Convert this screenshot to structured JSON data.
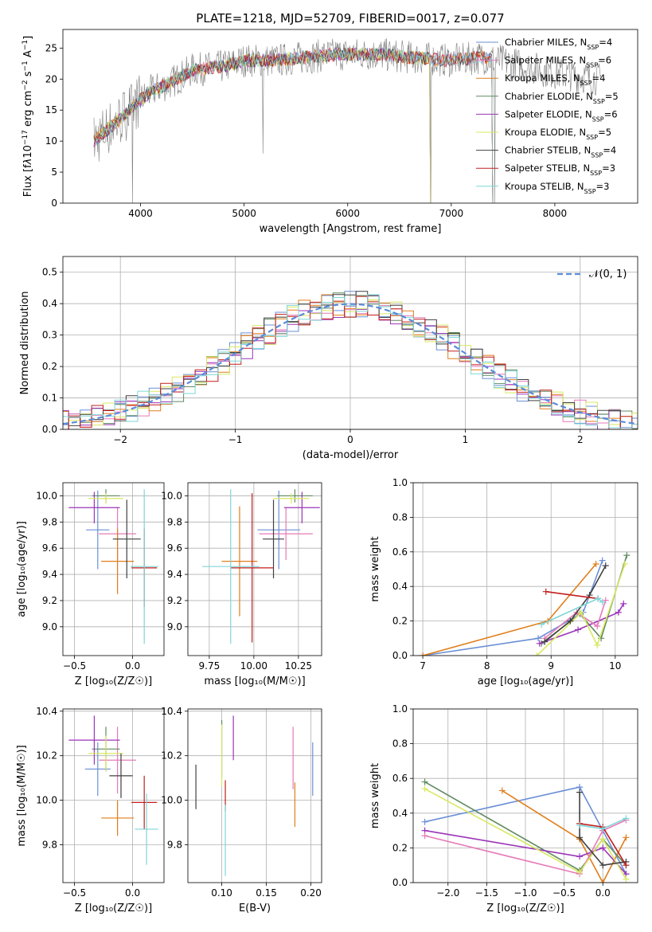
{
  "chart_data": [
    {
      "type": "line",
      "title": "PLATE=1218, MJD=52709, FIBERID=0017, z=0.077",
      "xlabel": "wavelength [Angstrom, rest frame]",
      "ylabel_html": "Flux [f<tspan font-style=\"italic\">λ</tspan>10<tspan baseline-shift=\"super\" font-size=\"9\">−17</tspan> erg cm<tspan baseline-shift=\"super\" font-size=\"9\">−2</tspan> s<tspan baseline-shift=\"super\" font-size=\"9\">−1</tspan> A<tspan baseline-shift=\"super\" font-size=\"9\">−1</tspan>]",
      "xlim": [
        3250,
        8800
      ],
      "ylim": [
        0,
        28
      ],
      "xticks": [
        4000,
        5000,
        6000,
        7000,
        8000
      ],
      "yticks": [
        0,
        5,
        10,
        15,
        20,
        25
      ],
      "grid": false,
      "legend_loc": "upper right",
      "data_series": {
        "name": "data",
        "color": "#808080",
        "x_range": [
          3550,
          8450
        ]
      },
      "continuum_nodes": [
        [
          3550,
          10
        ],
        [
          3650,
          11.5
        ],
        [
          3800,
          13.5
        ],
        [
          3950,
          16
        ],
        [
          4100,
          18
        ],
        [
          4300,
          19.5
        ],
        [
          4500,
          21.5
        ],
        [
          4800,
          22
        ],
        [
          5000,
          23
        ],
        [
          5300,
          23
        ],
        [
          5600,
          23.5
        ],
        [
          5900,
          24
        ],
        [
          6300,
          24
        ],
        [
          6600,
          23.5
        ],
        [
          7000,
          23
        ],
        [
          7300,
          23.5
        ],
        [
          7600,
          22.5
        ],
        [
          8000,
          21
        ],
        [
          8450,
          20
        ]
      ],
      "spikes": [
        [
          3920,
          0
        ],
        [
          6800,
          0
        ],
        [
          7420,
          0
        ],
        [
          5180,
          8
        ]
      ],
      "series": [
        {
          "name": "Chabrier MILES",
          "nssp": "4",
          "color": "#6a8fd6",
          "x_range": [
            3550,
            7400
          ]
        },
        {
          "name": "Salpeter MILES",
          "nssp": "6",
          "color": "#e67ab8",
          "x_range": [
            3550,
            7400
          ]
        },
        {
          "name": "Kroupa MILES",
          "nssp": "4",
          "color": "#e07e1b",
          "x_range": [
            3550,
            7400
          ]
        },
        {
          "name": "Chabrier ELODIE",
          "nssp": "5",
          "color": "#5f8a60",
          "x_range": [
            3550,
            6800
          ]
        },
        {
          "name": "Salpeter ELODIE",
          "nssp": "6",
          "color": "#9b34b8",
          "x_range": [
            3550,
            6800
          ]
        },
        {
          "name": "Kroupa ELODIE",
          "nssp": "5",
          "color": "#d9e862",
          "x_range": [
            3550,
            6800
          ]
        },
        {
          "name": "Chabrier STELIB",
          "nssp": "4",
          "color": "#404040",
          "x_range": [
            3550,
            7400
          ]
        },
        {
          "name": "Salpeter STELIB",
          "nssp": "3",
          "color": "#c21f1f",
          "x_range": [
            3550,
            7400
          ]
        },
        {
          "name": "Kroupa STELIB",
          "nssp": "3",
          "color": "#7fd6d6",
          "x_range": [
            3550,
            7400
          ]
        }
      ]
    },
    {
      "type": "histogram",
      "xlabel": "(data-model)/error",
      "ylabel": "Normed distribution",
      "xlim": [
        -2.5,
        2.5
      ],
      "ylim": [
        0,
        0.55
      ],
      "xticks": [
        -2,
        -1,
        0,
        1,
        2
      ],
      "yticks": [
        0.0,
        0.1,
        0.2,
        0.3,
        0.4,
        0.5
      ],
      "grid": true,
      "legend": "𝒩(0, 1)",
      "legend_loc": "upper right",
      "gaussian_color": "#5b8bd9",
      "bin_width": 0.1
    },
    {
      "type": "errorbar",
      "xlabel": "Z [log₁₀(Z/Z☉)]",
      "ylabel": "age  [log₁₀(age/yr)]",
      "xlim": [
        -0.6,
        0.27
      ],
      "ylim": [
        8.78,
        10.1
      ],
      "xticks": [
        -0.5,
        0.0
      ],
      "yticks": [
        9.0,
        9.2,
        9.4,
        9.6,
        9.8,
        10.0
      ],
      "grid": true,
      "points": [
        {
          "color": "#6a8fd6",
          "x": -0.3,
          "xerr": 0.1,
          "y": 9.74,
          "yerr": 0.3
        },
        {
          "color": "#e67ab8",
          "x": -0.13,
          "xerr": 0.16,
          "y": 9.71,
          "yerr": 0.2
        },
        {
          "color": "#e07e1b",
          "x": -0.13,
          "xerr": 0.14,
          "y": 9.5,
          "yerr": 0.25
        },
        {
          "color": "#5f8a60",
          "x": -0.23,
          "xerr": 0.12,
          "y": 10.0,
          "yerr": 0.05
        },
        {
          "color": "#9b34b8",
          "x": -0.33,
          "xerr": 0.22,
          "y": 9.91,
          "yerr": 0.12
        },
        {
          "color": "#d9e862",
          "x": -0.23,
          "xerr": 0.15,
          "y": 9.98,
          "yerr": 0.04
        },
        {
          "color": "#404040",
          "x": -0.05,
          "xerr": 0.12,
          "y": 9.67,
          "yerr": 0.3
        },
        {
          "color": "#c21f1f",
          "x": 0.1,
          "xerr": 0.11,
          "y": 9.45,
          "yerr": 0.3
        },
        {
          "color": "#7fd6d6",
          "x": 0.1,
          "xerr": 0.12,
          "y": 9.46,
          "yerr": 0.59
        }
      ]
    },
    {
      "type": "errorbar",
      "xlabel": "mass [log₁₀(M/M☉)]",
      "xlim": [
        9.63,
        10.38
      ],
      "ylim": [
        8.78,
        10.1
      ],
      "xticks": [
        9.75,
        10.0,
        10.25
      ],
      "yticks": [
        9.0,
        9.2,
        9.4,
        9.6,
        9.8,
        10.0
      ],
      "grid": true,
      "points": [
        {
          "color": "#6a8fd6",
          "x": 10.14,
          "xerr": 0.12,
          "y": 9.74,
          "yerr": 0.3
        },
        {
          "color": "#e67ab8",
          "x": 10.18,
          "xerr": 0.15,
          "y": 9.71,
          "yerr": 0.2
        },
        {
          "color": "#e07e1b",
          "x": 9.92,
          "xerr": 0.1,
          "y": 9.5,
          "yerr": 0.42
        },
        {
          "color": "#5f8a60",
          "x": 10.23,
          "xerr": 0.1,
          "y": 10.0,
          "yerr": 0.05
        },
        {
          "color": "#9b34b8",
          "x": 10.27,
          "xerr": 0.1,
          "y": 9.91,
          "yerr": 0.12
        },
        {
          "color": "#d9e862",
          "x": 10.21,
          "xerr": 0.1,
          "y": 9.98,
          "yerr": 0.04
        },
        {
          "color": "#404040",
          "x": 10.11,
          "xerr": 0.06,
          "y": 9.67,
          "yerr": 0.3
        },
        {
          "color": "#c21f1f",
          "x": 9.99,
          "xerr": 0.12,
          "y": 9.45,
          "yerr": 0.57
        },
        {
          "color": "#7fd6d6",
          "x": 9.87,
          "xerr": 0.16,
          "y": 9.46,
          "yerr": 0.59
        }
      ]
    },
    {
      "type": "line",
      "xlabel": "age  [log₁₀(age/yr)]",
      "ylabel": "mass weight",
      "xlim": [
        6.85,
        10.35
      ],
      "ylim": [
        0,
        1.0
      ],
      "xticks": [
        7,
        8,
        9,
        10
      ],
      "yticks": [
        0.0,
        0.2,
        0.4,
        0.6,
        0.8,
        1.0
      ],
      "grid": true,
      "series": [
        {
          "color": "#6a8fd6",
          "x": [
            7.0,
            8.8,
            9.5,
            9.8
          ],
          "y": [
            0.0,
            0.1,
            0.25,
            0.55
          ]
        },
        {
          "color": "#e07e1b",
          "x": [
            7.0,
            8.95,
            9.7
          ],
          "y": [
            0.0,
            0.2,
            0.53
          ]
        },
        {
          "color": "#5f8a60",
          "x": [
            8.85,
            9.45,
            9.78,
            10.18
          ],
          "y": [
            0.07,
            0.24,
            0.1,
            0.58
          ]
        },
        {
          "color": "#9b34b8",
          "x": [
            8.82,
            9.42,
            10.05,
            10.13
          ],
          "y": [
            0.07,
            0.15,
            0.25,
            0.3
          ]
        },
        {
          "color": "#e67ab8",
          "x": [
            8.9,
            9.4,
            9.72,
            9.85
          ],
          "y": [
            0.1,
            0.25,
            0.17,
            0.32
          ]
        },
        {
          "color": "#d9e862",
          "x": [
            8.78,
            9.47,
            9.72,
            10.15
          ],
          "y": [
            0.0,
            0.25,
            0.06,
            0.53
          ]
        },
        {
          "color": "#404040",
          "x": [
            8.9,
            9.3,
            9.6,
            9.85
          ],
          "y": [
            0.08,
            0.2,
            0.35,
            0.52
          ]
        },
        {
          "color": "#c21f1f",
          "x": [
            8.92,
            9.73
          ],
          "y": [
            0.37,
            0.33
          ]
        },
        {
          "color": "#7fd6d6",
          "x": [
            8.85,
            9.73,
            9.8
          ],
          "y": [
            0.18,
            0.33,
            0.31
          ]
        }
      ]
    },
    {
      "type": "errorbar",
      "xlabel": "Z [log₁₀(Z/Z☉)]",
      "ylabel": "mass [log₁₀(M/M☉)]",
      "xlim": [
        -0.6,
        0.27
      ],
      "ylim": [
        9.63,
        10.41
      ],
      "xticks": [
        -0.5,
        0.0
      ],
      "yticks": [
        9.8,
        10.0,
        10.2,
        10.4
      ],
      "grid": true,
      "points": [
        {
          "color": "#6a8fd6",
          "x": -0.3,
          "xerr": 0.11,
          "y": 10.14,
          "yerr": 0.12
        },
        {
          "color": "#e67ab8",
          "x": -0.13,
          "xerr": 0.16,
          "y": 10.18,
          "yerr": 0.15
        },
        {
          "color": "#e07e1b",
          "x": -0.13,
          "xerr": 0.14,
          "y": 9.92,
          "yerr": 0.08
        },
        {
          "color": "#5f8a60",
          "x": -0.23,
          "xerr": 0.12,
          "y": 10.23,
          "yerr": 0.1
        },
        {
          "color": "#9b34b8",
          "x": -0.33,
          "xerr": 0.22,
          "y": 10.27,
          "yerr": 0.11
        },
        {
          "color": "#d9e862",
          "x": -0.23,
          "xerr": 0.15,
          "y": 10.21,
          "yerr": 0.08
        },
        {
          "color": "#404040",
          "x": -0.1,
          "xerr": 0.1,
          "y": 10.11,
          "yerr": 0.1
        },
        {
          "color": "#c21f1f",
          "x": 0.1,
          "xerr": 0.11,
          "y": 9.99,
          "yerr": 0.12
        },
        {
          "color": "#7fd6d6",
          "x": 0.12,
          "xerr": 0.1,
          "y": 9.87,
          "yerr": 0.16
        }
      ]
    },
    {
      "type": "errorbar",
      "xlabel": "E(B-V)",
      "xlim": [
        0.062,
        0.212
      ],
      "ylim": [
        9.63,
        10.41
      ],
      "xticks": [
        0.1,
        0.15,
        0.2
      ],
      "yticks": [
        9.8,
        10.0,
        10.2,
        10.4
      ],
      "grid": true,
      "points": [
        {
          "color": "#6a8fd6",
          "x": 0.202,
          "y": 10.14,
          "yerr": 0.12
        },
        {
          "color": "#e67ab8",
          "x": 0.18,
          "y": 10.19,
          "yerr": 0.14
        },
        {
          "color": "#e07e1b",
          "x": 0.182,
          "y": 9.98,
          "yerr": 0.1
        },
        {
          "color": "#5f8a60",
          "x": 0.1,
          "y": 10.23,
          "yerr": 0.13
        },
        {
          "color": "#9b34b8",
          "x": 0.113,
          "y": 10.28,
          "yerr": 0.1
        },
        {
          "color": "#d9e862",
          "x": 0.1,
          "y": 10.2,
          "yerr": 0.14
        },
        {
          "color": "#404040",
          "x": 0.071,
          "y": 10.06,
          "yerr": 0.1
        },
        {
          "color": "#c21f1f",
          "x": 0.104,
          "y": 10.02,
          "yerr": 0.07
        },
        {
          "color": "#7fd6d6",
          "x": 0.104,
          "y": 9.82,
          "yerr": 0.16
        }
      ]
    },
    {
      "type": "line",
      "xlabel": "Z [log₁₀(Z/Z☉)]",
      "ylabel": "mass weight",
      "xlim": [
        -2.45,
        0.45
      ],
      "ylim": [
        0,
        1.0
      ],
      "xticks": [
        -2.0,
        -1.5,
        -1.0,
        -0.5,
        0.0
      ],
      "yticks": [
        0.0,
        0.2,
        0.4,
        0.6,
        0.8,
        1.0
      ],
      "grid": true,
      "series": [
        {
          "color": "#6a8fd6",
          "x": [
            -2.3,
            -0.3,
            0.0,
            0.3
          ],
          "y": [
            0.35,
            0.55,
            0.3,
            0.05
          ]
        },
        {
          "color": "#e07e1b",
          "x": [
            -1.3,
            -0.3,
            0.0,
            0.3
          ],
          "y": [
            0.53,
            0.25,
            0.0,
            0.26
          ]
        },
        {
          "color": "#5f8a60",
          "x": [
            -2.3,
            -0.3,
            0.0,
            0.3
          ],
          "y": [
            0.58,
            0.07,
            0.25,
            0.1
          ]
        },
        {
          "color": "#9b34b8",
          "x": [
            -2.3,
            -0.3,
            0.0,
            0.3
          ],
          "y": [
            0.3,
            0.15,
            0.2,
            0.05
          ]
        },
        {
          "color": "#e67ab8",
          "x": [
            -2.3,
            -0.3,
            0.0,
            0.3
          ],
          "y": [
            0.27,
            0.05,
            0.3,
            0.36
          ]
        },
        {
          "color": "#d9e862",
          "x": [
            -2.3,
            -0.3,
            0.0,
            0.3
          ],
          "y": [
            0.54,
            0.06,
            0.25,
            0.02
          ]
        },
        {
          "color": "#404040",
          "x": [
            -0.3,
            -0.3,
            0.0,
            0.3
          ],
          "y": [
            0.52,
            0.26,
            0.1,
            0.12
          ]
        },
        {
          "color": "#c21f1f",
          "x": [
            -0.3,
            0.0,
            0.3
          ],
          "y": [
            0.34,
            0.32,
            0.1
          ]
        },
        {
          "color": "#7fd6d6",
          "x": [
            -0.3,
            0.0,
            0.3
          ],
          "y": [
            0.33,
            0.31,
            0.37
          ]
        }
      ]
    }
  ]
}
